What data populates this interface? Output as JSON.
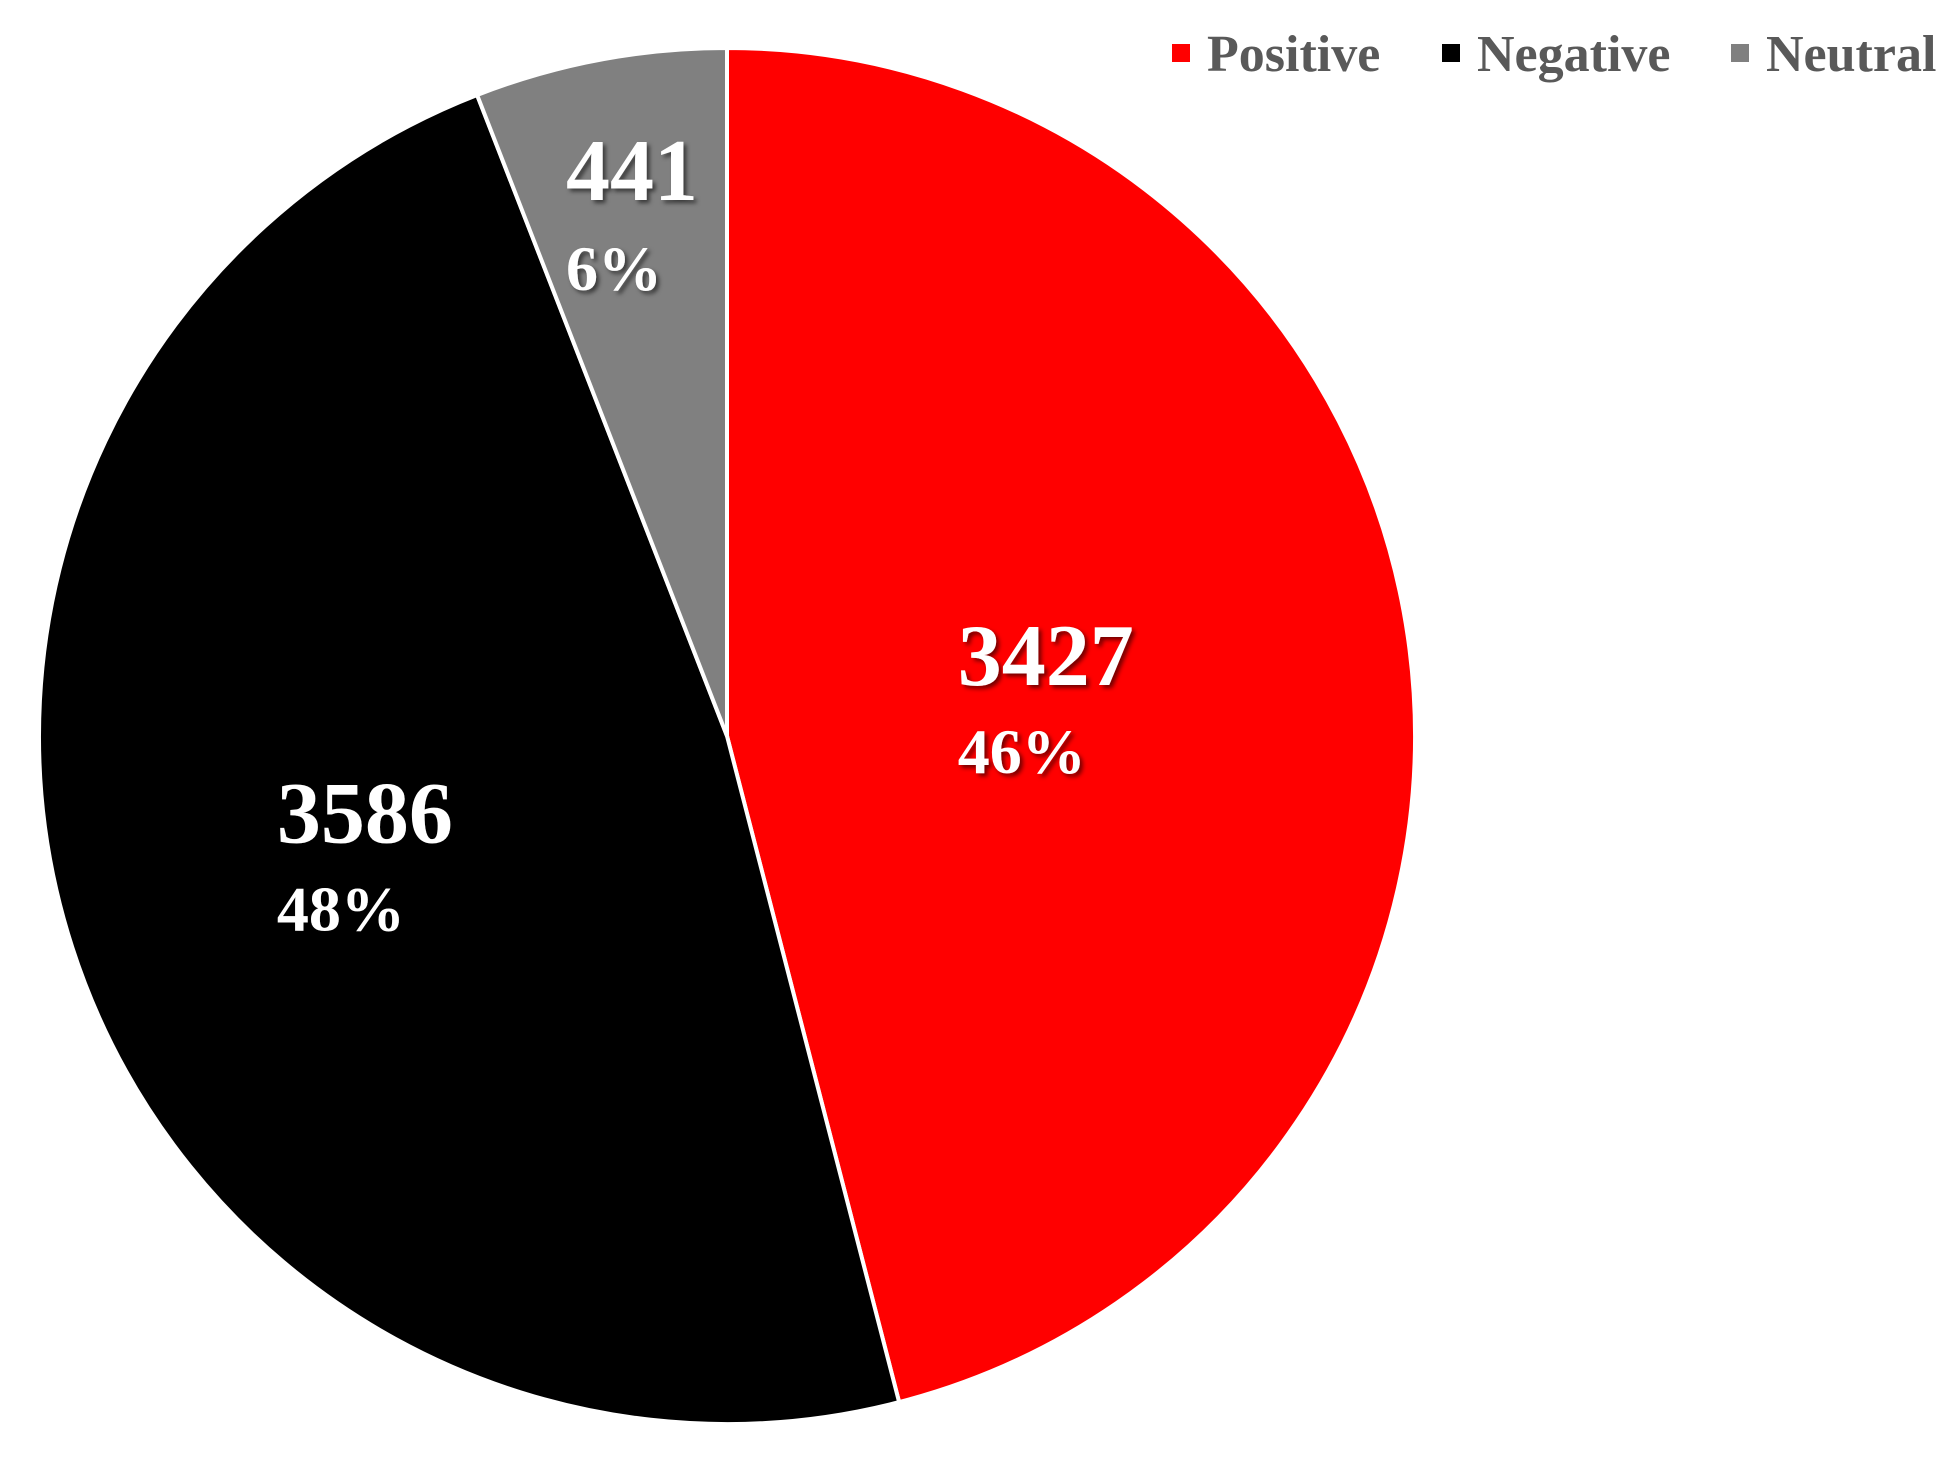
{
  "chart_data": {
    "type": "pie",
    "categories": [
      "Positive",
      "Negative",
      "Neutral"
    ],
    "values": [
      3427,
      3586,
      441
    ],
    "percent_labels": [
      "46%",
      "48%",
      "6%"
    ],
    "colors": [
      "#ff0000",
      "#000000",
      "#808080"
    ],
    "legend_position": "top-right",
    "start_angle_deg": 0,
    "direction": "clockwise"
  }
}
